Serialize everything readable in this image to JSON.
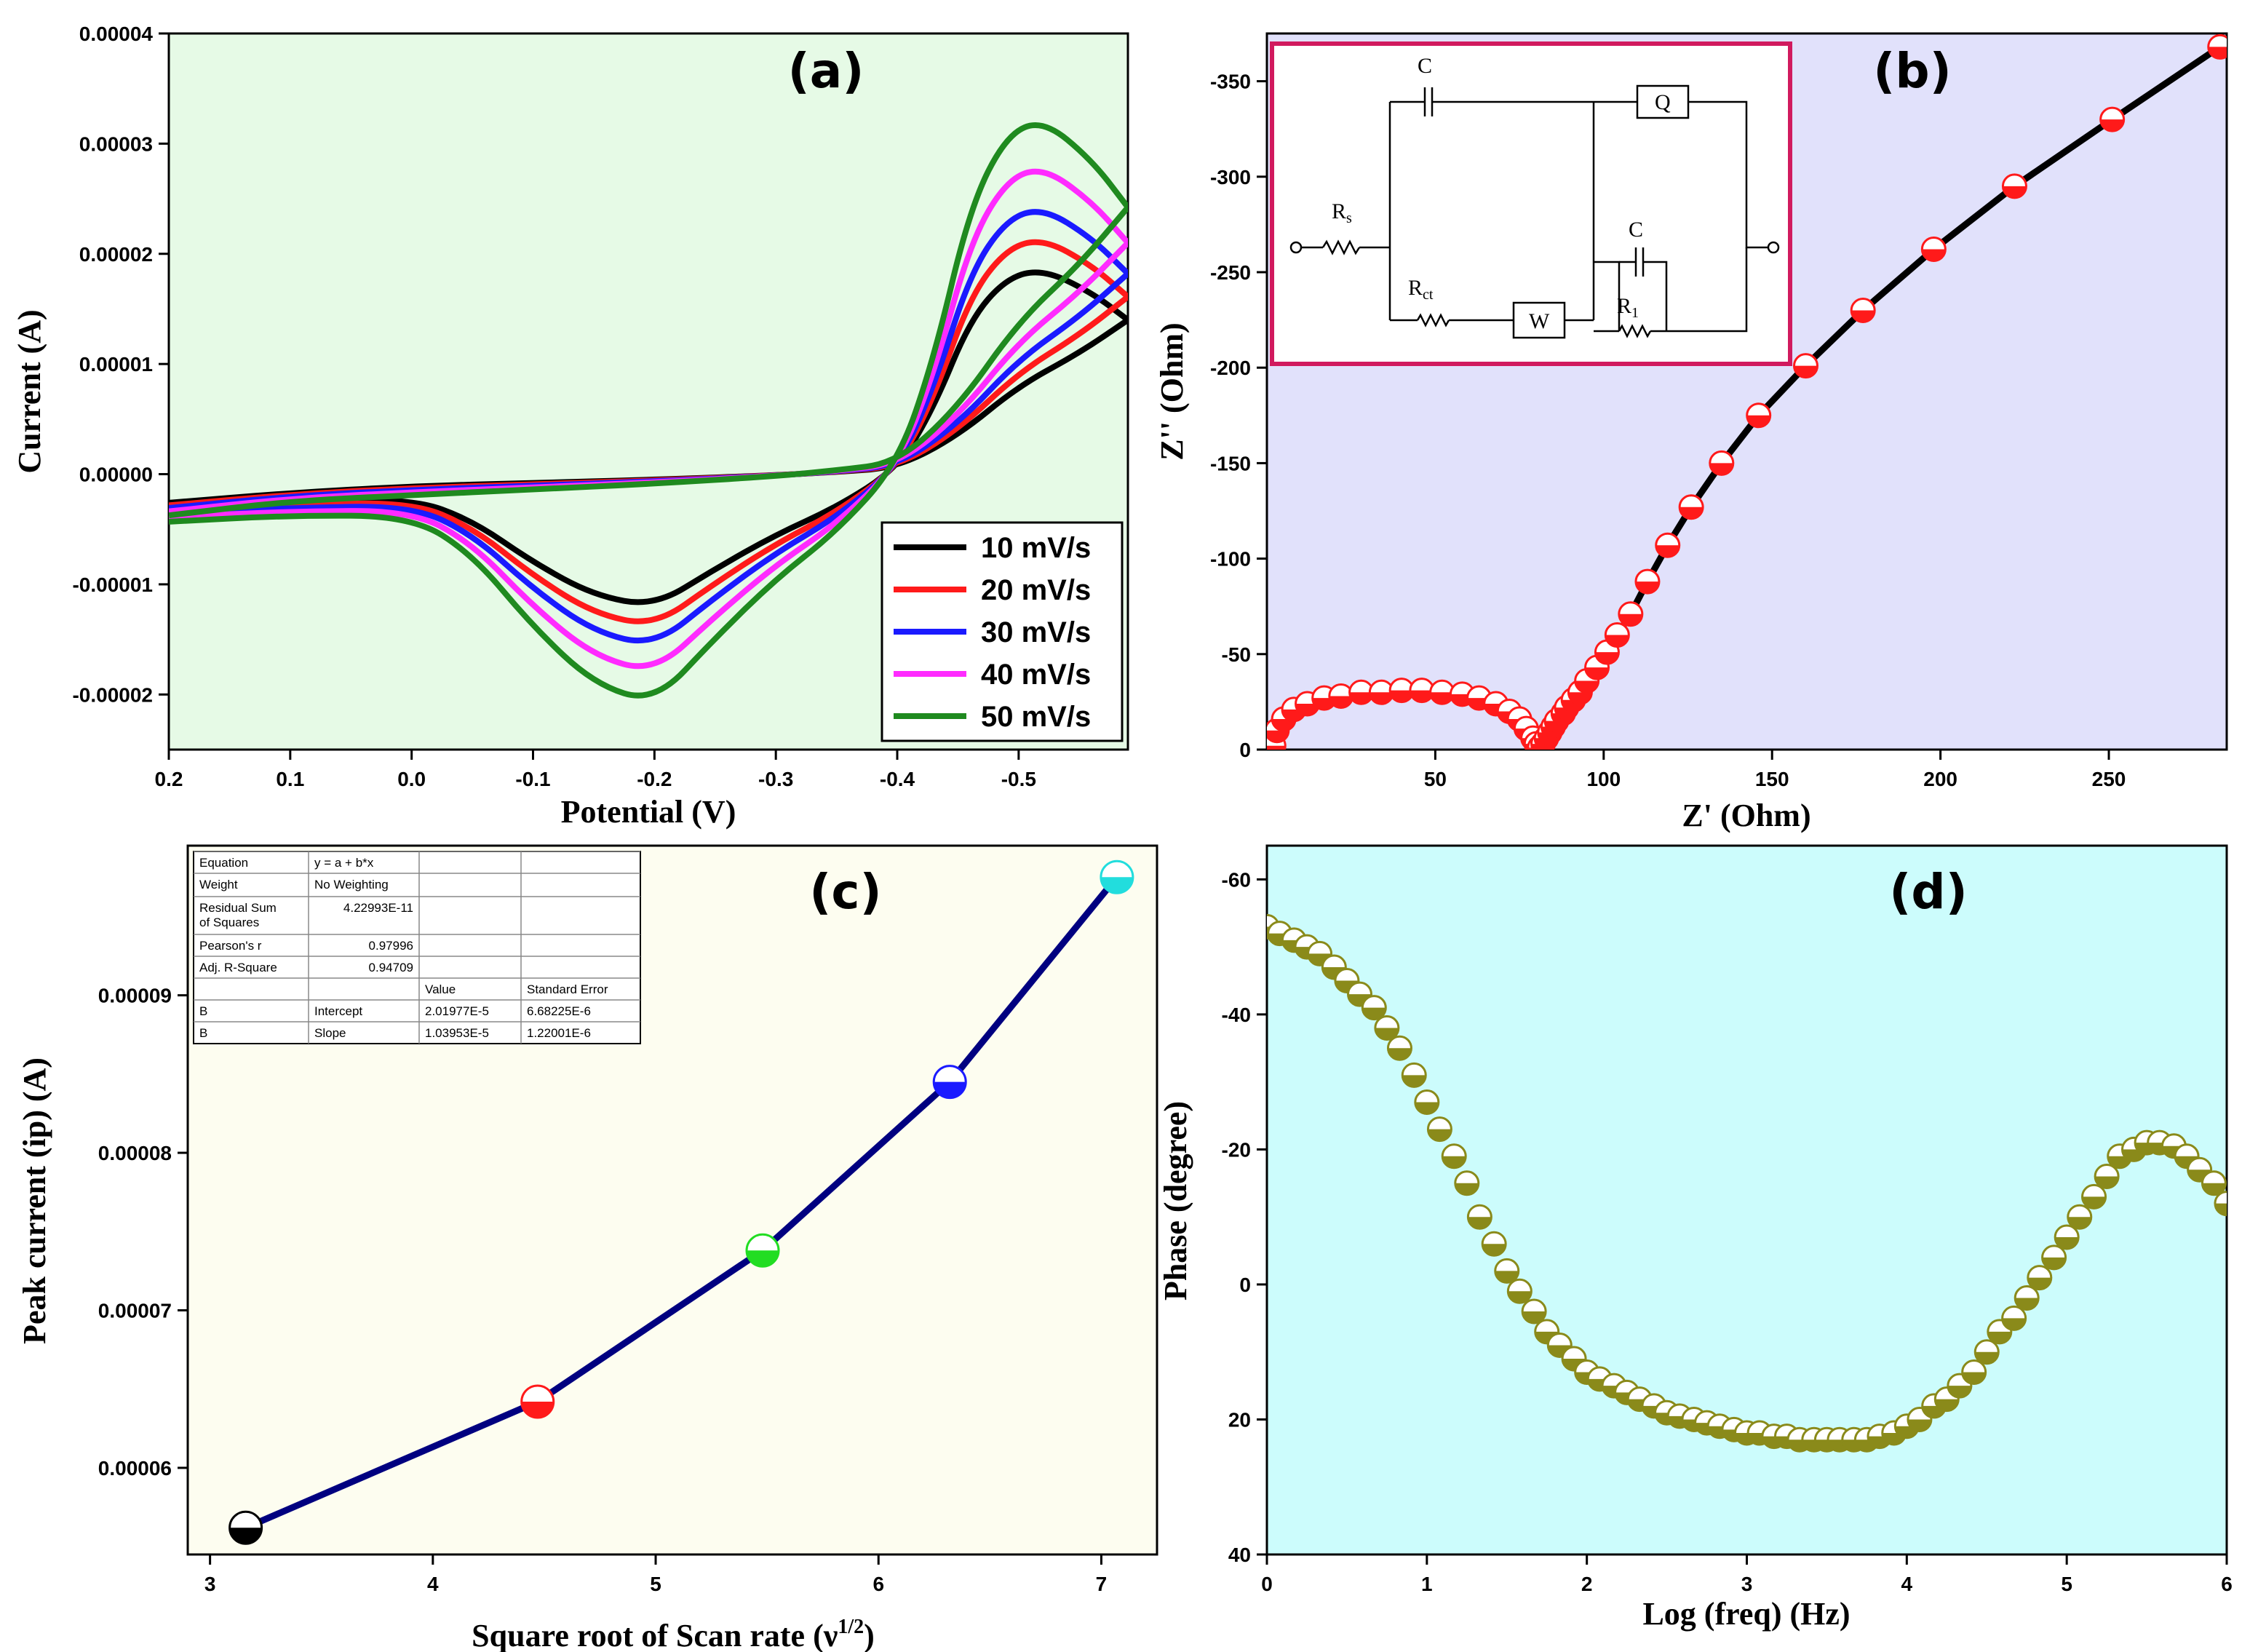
{
  "chart_data": [
    {
      "id": "a",
      "type": "line",
      "panel_label": "(a)",
      "xlabel": "Potential (V)",
      "ylabel": "Current (A)",
      "xlim": [
        0.2,
        -0.59
      ],
      "ylim": [
        -2.5e-05,
        4e-05
      ],
      "xticks": [
        0.2,
        0.1,
        0.0,
        -0.1,
        -0.2,
        -0.3,
        -0.4,
        -0.5
      ],
      "xtick_labels": [
        "0.2",
        "0.1",
        "0.0",
        "-0.1",
        "-0.2",
        "-0.3",
        "-0.4",
        "-0.5"
      ],
      "yticks": [
        -2e-05,
        -1e-05,
        0,
        1e-05,
        2e-05,
        3e-05,
        4e-05
      ],
      "ytick_labels": [
        "-0.00002",
        "-0.00001",
        "0.00000",
        "0.00001",
        "0.00002",
        "0.00003",
        "0.00004"
      ],
      "background": "#e6fae6",
      "legend_position": "bottom-right",
      "series": [
        {
          "name": "10 mV/s",
          "color": "#000000",
          "scale": 1.0
        },
        {
          "name": "20 mV/s",
          "color": "#ff1a1a",
          "scale": 1.15
        },
        {
          "name": "30 mV/s",
          "color": "#1a1aff",
          "scale": 1.3
        },
        {
          "name": "40 mV/s",
          "color": "#ff2bff",
          "scale": 1.5
        },
        {
          "name": "50 mV/s",
          "color": "#1f8a1f",
          "scale": 1.73
        }
      ],
      "base_curve": {
        "reverse": [
          [
            0.2,
            -2.6e-06
          ],
          [
            0.1,
            -1.7e-06
          ],
          [
            0.0,
            -1.1e-06
          ],
          [
            -0.1,
            -8e-07
          ],
          [
            -0.2,
            -5e-07
          ],
          [
            -0.3,
            -1e-07
          ],
          [
            -0.35,
            2e-07
          ],
          [
            -0.4,
            6e-07
          ],
          [
            -0.45,
            3.5e-06
          ],
          [
            -0.5,
            8e-06
          ],
          [
            -0.55,
            1.1e-05
          ],
          [
            -0.59,
            1.4e-05
          ]
        ],
        "forward": [
          [
            -0.59,
            1.4e-05
          ],
          [
            -0.56,
            1.65e-05
          ],
          [
            -0.52,
            1.86e-05
          ],
          [
            -0.49,
            1.78e-05
          ],
          [
            -0.46,
            1.4e-05
          ],
          [
            -0.43,
            6e-06
          ],
          [
            -0.4,
            5e-07
          ],
          [
            -0.35,
            -3e-06
          ],
          [
            -0.3,
            -5.5e-06
          ],
          [
            -0.25,
            -8.6e-06
          ],
          [
            -0.2,
            -1.2e-05
          ],
          [
            -0.15,
            -1.1e-05
          ],
          [
            -0.1,
            -8e-06
          ],
          [
            -0.05,
            -4.2e-06
          ],
          [
            0.0,
            -2.2e-06
          ],
          [
            0.1,
            -2.6e-06
          ],
          [
            0.2,
            -3e-06
          ]
        ]
      }
    },
    {
      "id": "b",
      "type": "scatter",
      "panel_label": "(b)",
      "xlabel": "Z' (Ohm)",
      "ylabel": "Z'' (Ohm)",
      "xlim": [
        0,
        285
      ],
      "ylim": [
        0,
        -375
      ],
      "xticks": [
        50,
        100,
        150,
        200,
        250
      ],
      "xtick_labels": [
        "50",
        "100",
        "150",
        "200",
        "250"
      ],
      "yticks": [
        0,
        -50,
        -100,
        -150,
        -200,
        -250,
        -300,
        -350
      ],
      "ytick_labels": [
        "0",
        "-50",
        "-100",
        "-150",
        "-200",
        "-250",
        "-300",
        "-350"
      ],
      "background": "#e1e1fb",
      "marker_color": "#ff1a1a",
      "line_color": "#000000",
      "points": [
        [
          2,
          -2
        ],
        [
          3,
          -10
        ],
        [
          5,
          -16
        ],
        [
          8,
          -21
        ],
        [
          12,
          -24
        ],
        [
          17,
          -27
        ],
        [
          22,
          -28
        ],
        [
          28,
          -30
        ],
        [
          34,
          -30
        ],
        [
          40,
          -31
        ],
        [
          46,
          -31
        ],
        [
          52,
          -30
        ],
        [
          58,
          -29
        ],
        [
          63,
          -27
        ],
        [
          68,
          -24
        ],
        [
          72,
          -20
        ],
        [
          75,
          -16
        ],
        [
          77,
          -11
        ],
        [
          79,
          -6
        ],
        [
          80,
          -3
        ],
        [
          81,
          -1
        ],
        [
          82,
          -3
        ],
        [
          83,
          -6
        ],
        [
          84,
          -9
        ],
        [
          85,
          -12
        ],
        [
          86,
          -15
        ],
        [
          88,
          -19
        ],
        [
          89,
          -22
        ],
        [
          91,
          -26
        ],
        [
          93,
          -30
        ],
        [
          95,
          -36
        ],
        [
          98,
          -43
        ],
        [
          101,
          -51
        ],
        [
          104,
          -60
        ],
        [
          108,
          -71
        ],
        [
          113,
          -88
        ],
        [
          119,
          -107
        ],
        [
          126,
          -127
        ],
        [
          135,
          -150
        ],
        [
          146,
          -175
        ],
        [
          160,
          -201
        ],
        [
          177,
          -230
        ],
        [
          198,
          -262
        ],
        [
          222,
          -295
        ],
        [
          251,
          -330
        ],
        [
          283,
          -368
        ]
      ],
      "circuit": {
        "labels": [
          "C",
          "Q",
          "R",
          "s",
          "R",
          "ct",
          "W",
          "C",
          "R",
          "1"
        ],
        "border_color": "#d11a5e"
      }
    },
    {
      "id": "c",
      "type": "line",
      "panel_label": "(c)",
      "xlabel": "Square root of Scan rate (ν",
      "xlabel_sup": "1/2",
      "xlabel_end": ")",
      "ylabel": "Peak current (ip) (A)",
      "xlim": [
        2.9,
        7.25
      ],
      "ylim": [
        5.45e-05,
        9.95e-05
      ],
      "xticks": [
        3,
        4,
        5,
        6,
        7
      ],
      "xtick_labels": [
        "3",
        "4",
        "5",
        "6",
        "7"
      ],
      "yticks": [
        6e-05,
        7e-05,
        8e-05,
        9e-05
      ],
      "ytick_labels": [
        "0.00006",
        "0.00007",
        "0.00008",
        "0.00009"
      ],
      "background": "#fdfdf0",
      "line_color": "#000080",
      "x": [
        3.16,
        4.47,
        5.48,
        6.32,
        7.07
      ],
      "y": [
        5.62e-05,
        6.42e-05,
        7.38e-05,
        8.45e-05,
        9.75e-05
      ],
      "marker_colors": [
        "#000000",
        "#ff1a1a",
        "#22dd22",
        "#1a1aff",
        "#22dddd"
      ],
      "fit_table": [
        [
          "Equation",
          "y = a + b*x",
          "",
          ""
        ],
        [
          "Weight",
          "No Weighting",
          "",
          ""
        ],
        [
          "Residual Sum\nof Squares",
          "4.22993E-11",
          "",
          ""
        ],
        [
          "Pearson's r",
          "0.97996",
          "",
          ""
        ],
        [
          "Adj. R-Square",
          "0.94709",
          "",
          ""
        ],
        [
          "",
          "",
          "Value",
          "Standard Error"
        ],
        [
          "B",
          "Intercept",
          "2.01977E-5",
          "6.68225E-6"
        ],
        [
          "B",
          "Slope",
          "1.03953E-5",
          "1.22001E-6"
        ]
      ]
    },
    {
      "id": "d",
      "type": "scatter",
      "panel_label": "(d)",
      "xlabel": "Log (freq) (Hz)",
      "ylabel": "Phase (degree)",
      "xlim": [
        0,
        6
      ],
      "ylim": [
        40,
        -65
      ],
      "xticks": [
        0,
        1,
        2,
        3,
        4,
        5,
        6
      ],
      "xtick_labels": [
        "0",
        "1",
        "2",
        "3",
        "4",
        "5",
        "6"
      ],
      "yticks": [
        40,
        20,
        0,
        -20,
        -40,
        -60
      ],
      "ytick_labels": [
        "40",
        "20",
        "0",
        "-20",
        "-40",
        "-60"
      ],
      "background": "#ccfcfc",
      "marker_color": "#8a8a1a",
      "x": [
        0,
        0.08,
        0.17,
        0.25,
        0.33,
        0.42,
        0.5,
        0.58,
        0.67,
        0.75,
        0.83,
        0.92,
        1.0,
        1.08,
        1.17,
        1.25,
        1.33,
        1.42,
        1.5,
        1.58,
        1.67,
        1.75,
        1.83,
        1.92,
        2.0,
        2.08,
        2.17,
        2.25,
        2.33,
        2.42,
        2.5,
        2.58,
        2.67,
        2.75,
        2.83,
        2.92,
        3.0,
        3.08,
        3.17,
        3.25,
        3.33,
        3.42,
        3.5,
        3.58,
        3.67,
        3.75,
        3.83,
        3.92,
        4.0,
        4.08,
        4.17,
        4.25,
        4.33,
        4.42,
        4.5,
        4.58,
        4.67,
        4.75,
        4.83,
        4.92,
        5.0,
        5.08,
        5.17,
        5.25,
        5.33,
        5.42,
        5.5,
        5.58,
        5.67,
        5.75,
        5.83,
        5.92,
        6.0
      ],
      "y": [
        -53,
        -52,
        -51,
        -50,
        -49,
        -47,
        -45,
        -43,
        -41,
        -38,
        -35,
        -31,
        -27,
        -23,
        -19,
        -15,
        -10,
        -6,
        -2,
        1,
        4,
        7,
        9,
        11,
        13,
        14,
        15,
        16,
        17,
        18,
        19,
        19.5,
        20,
        20.5,
        21,
        21.5,
        22,
        22,
        22.5,
        22.5,
        23,
        23,
        23,
        23,
        23,
        23,
        22.5,
        22,
        21,
        20,
        18,
        17,
        15,
        13,
        10,
        7,
        5,
        2,
        -1,
        -4,
        -7,
        -10,
        -13,
        -16,
        -19,
        -20,
        -21,
        -21,
        -20.5,
        -19,
        -17,
        -15,
        -12
      ]
    }
  ]
}
